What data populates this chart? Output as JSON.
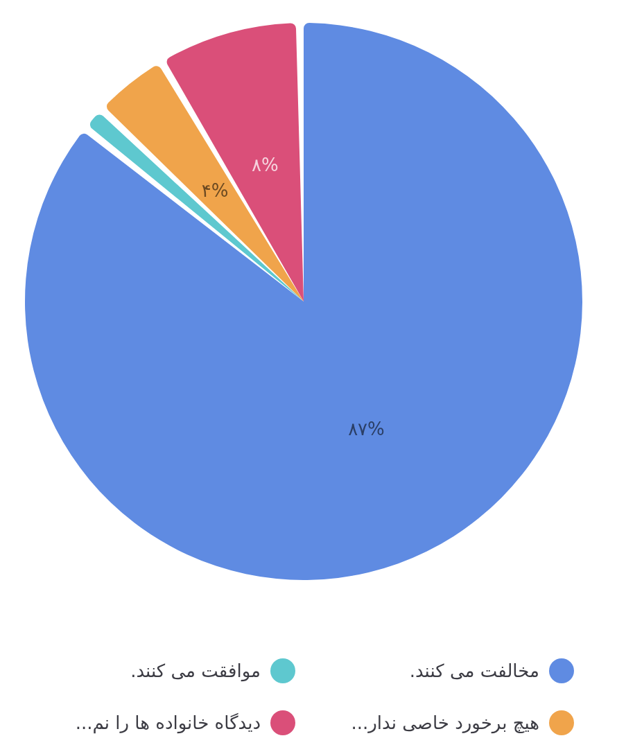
{
  "chart_data": {
    "type": "pie",
    "categories": [
      "مخالفت می کنند.",
      "موافقت می کنند.",
      "هیچ برخورد خاصی ندار...",
      "دیدگاه خانواده ها را نم..."
    ],
    "values": [
      87,
      1,
      4,
      8
    ],
    "colors": [
      "#5f8be2",
      "#5ec8cf",
      "#f0a44b",
      "#da4f79"
    ],
    "value_labels": [
      "۸۷%",
      null,
      "۴%",
      "۸%"
    ],
    "legend": "bottom"
  }
}
